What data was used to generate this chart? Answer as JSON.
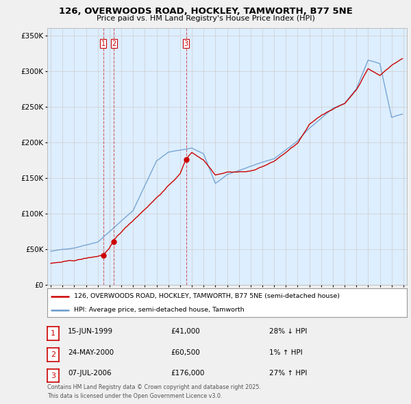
{
  "title_line1": "126, OVERWOODS ROAD, HOCKLEY, TAMWORTH, B77 5NE",
  "title_line2": "Price paid vs. HM Land Registry's House Price Index (HPI)",
  "hpi_label": "HPI: Average price, semi-detached house, Tamworth",
  "property_label": "126, OVERWOODS ROAD, HOCKLEY, TAMWORTH, B77 5NE (semi-detached house)",
  "transactions": [
    {
      "id": 1,
      "date": "15-JUN-1999",
      "price": 41000,
      "hpi_diff": "28% ↓ HPI",
      "year": 1999.46
    },
    {
      "id": 2,
      "date": "24-MAY-2000",
      "price": 60500,
      "hpi_diff": "1% ↑ HPI",
      "year": 2000.38
    },
    {
      "id": 3,
      "date": "07-JUL-2006",
      "price": 176000,
      "hpi_diff": "27% ↑ HPI",
      "year": 2006.52
    }
  ],
  "property_color": "#cc0000",
  "hpi_color": "#6699cc",
  "background_color": "#f0f0f0",
  "plot_bg_color": "#ddeeff",
  "ylim": [
    0,
    360000
  ],
  "xlim_start": 1994.7,
  "xlim_end": 2025.3,
  "footer_text": "Contains HM Land Registry data © Crown copyright and database right 2025.\nThis data is licensed under the Open Government Licence v3.0."
}
